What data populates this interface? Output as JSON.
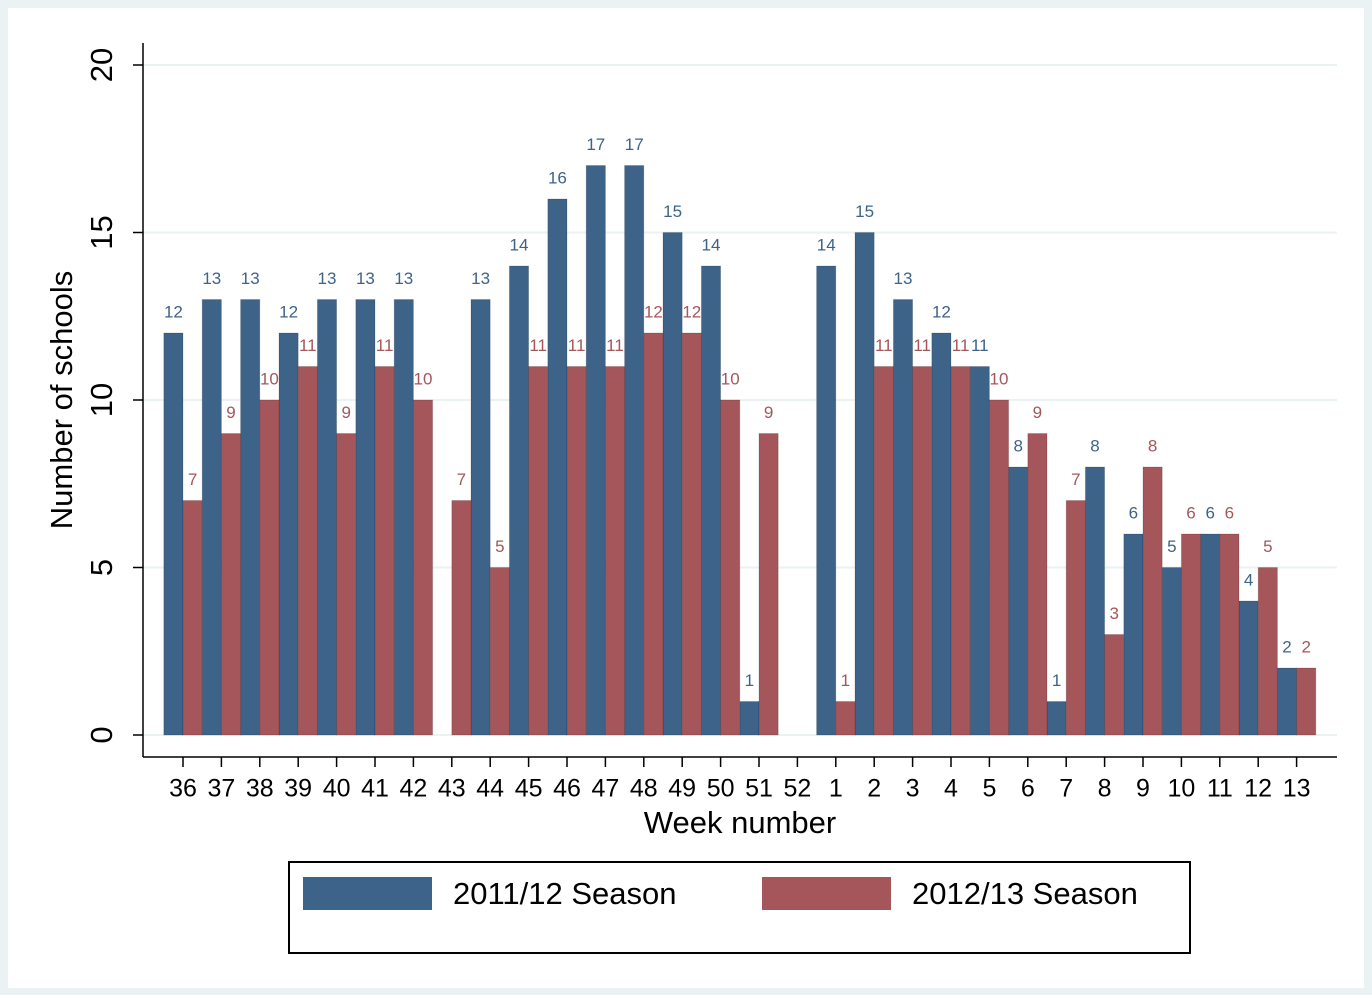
{
  "chart_data": {
    "type": "bar",
    "x_label": "Week number",
    "y_label": "Number of schools",
    "categories": [
      "36",
      "37",
      "38",
      "39",
      "40",
      "41",
      "42",
      "43",
      "44",
      "45",
      "46",
      "47",
      "48",
      "49",
      "50",
      "51",
      "52",
      "1",
      "2",
      "3",
      "4",
      "5",
      "6",
      "7",
      "8",
      "9",
      "10",
      "11",
      "12",
      "13"
    ],
    "series": [
      {
        "name": "2011/12 Season",
        "color": "#3e6389",
        "values": [
          12,
          13,
          13,
          12,
          13,
          13,
          13,
          null,
          13,
          14,
          16,
          17,
          17,
          15,
          14,
          1,
          null,
          14,
          15,
          13,
          12,
          11,
          8,
          1,
          8,
          6,
          5,
          6,
          4,
          2
        ]
      },
      {
        "name": "2012/13 Season",
        "color": "#a4565b",
        "values": [
          7,
          9,
          10,
          11,
          9,
          11,
          10,
          7,
          5,
          11,
          11,
          11,
          12,
          12,
          10,
          9,
          null,
          1,
          11,
          11,
          11,
          10,
          9,
          7,
          3,
          8,
          6,
          6,
          5,
          2
        ]
      }
    ],
    "ylim": [
      0,
      20
    ],
    "yticks": [
      0,
      5,
      10,
      15,
      20
    ],
    "grid": true,
    "legend": "bottom"
  }
}
